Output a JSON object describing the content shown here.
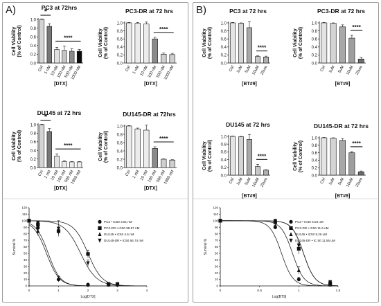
{
  "panels": [
    {
      "label": "A)",
      "axis_unit": "[DTX]",
      "curve_xlabel": "Log[DTX]"
    },
    {
      "label": "B)",
      "axis_unit": "[BT#9]",
      "curve_xlabel": "Log[BT9]"
    }
  ],
  "chart_data": [
    {
      "type": "bar",
      "id": "A1",
      "title": "PC3 at 72hrs",
      "ylabel": "Cell Viability\n(% of Control)",
      "xlabel": "[DTX]",
      "ylim": [
        0,
        1.0
      ],
      "yticks": [
        0,
        0.2,
        0.4,
        0.6,
        0.8,
        1.0
      ],
      "categories": [
        "Ctrl",
        "1 nM",
        "10 nM",
        "100 nM",
        "500 nM",
        "1000 nM"
      ],
      "values": [
        1.0,
        0.84,
        0.31,
        0.29,
        0.27,
        0.27
      ],
      "errors": [
        0.01,
        0.06,
        0.05,
        0.1,
        0.06,
        0.04
      ],
      "colors": [
        "#d4d4d4",
        "#777777",
        "#e2e2e2",
        "#c4c4c4",
        "#8a8a8a",
        "#0b0b0b"
      ],
      "annotations": [
        {
          "text": "*",
          "from": 0,
          "to": 1
        },
        {
          "text": "****",
          "from": 2,
          "to": 5
        }
      ]
    },
    {
      "type": "bar",
      "id": "A2",
      "title": "PC3-DR at 72 hrs",
      "ylabel": "Cell Viability\n(% of Control)",
      "xlabel": "[DTX]",
      "ylim": [
        0,
        1.0
      ],
      "yticks": [
        0,
        0.2,
        0.4,
        0.6,
        0.8,
        1.0
      ],
      "categories": [
        "Ctrl",
        "1 nM",
        "10 nM",
        "100 nM",
        "500 nM",
        "1000 nM"
      ],
      "values": [
        1.0,
        0.99,
        0.97,
        0.6,
        0.22,
        0.21
      ],
      "errors": [
        0.01,
        0.02,
        0.05,
        0.04,
        0.03,
        0.03
      ],
      "colors": [
        "#ececec",
        "#ececec",
        "#ececec",
        "#8a8a8a",
        "#cfcfcf",
        "#cfcfcf"
      ],
      "annotations": [
        {
          "text": "****",
          "from": 3,
          "to": 5
        }
      ]
    },
    {
      "type": "bar",
      "id": "A3",
      "title": "DU145 at 72 hrs",
      "ylabel": "Cell Viability\n(% of Control)",
      "xlabel": "[DTX]",
      "ylim": [
        0,
        1.0
      ],
      "yticks": [
        0,
        0.2,
        0.4,
        0.6,
        0.8,
        1.0
      ],
      "categories": [
        "Ctrl",
        "1 nM",
        "10 nM",
        "100 nM",
        "500 nM",
        "1000 nM"
      ],
      "values": [
        1.0,
        0.84,
        0.27,
        0.14,
        0.13,
        0.13
      ],
      "errors": [
        0.01,
        0.07,
        0.05,
        0.02,
        0.01,
        0.01
      ],
      "colors": [
        "#d4d4d4",
        "#777777",
        "#e2e2e2",
        "#ececec",
        "#ececec",
        "#ececec"
      ],
      "annotations": [
        {
          "text": "*",
          "from": 0,
          "to": 1
        },
        {
          "text": "****",
          "from": 2,
          "to": 5
        }
      ]
    },
    {
      "type": "bar",
      "id": "A4",
      "title": "DU145-DR at 72hrs",
      "ylabel": "Cell Viability\n(% of Control)",
      "xlabel": "[DTX]",
      "ylim": [
        0,
        1.0
      ],
      "yticks": [
        0,
        0.2,
        0.4,
        0.6,
        0.8,
        1.0
      ],
      "categories": [
        "Ctrl",
        "1 nM",
        "10 nM",
        "100 nM",
        "500 nM",
        "1000 nM"
      ],
      "values": [
        1.0,
        0.93,
        0.9,
        0.46,
        0.2,
        0.18
      ],
      "errors": [
        0.01,
        0.02,
        0.12,
        0.04,
        0.01,
        0.01
      ],
      "colors": [
        "#ececec",
        "#ececec",
        "#ececec",
        "#8a8a8a",
        "#cfcfcf",
        "#cfcfcf"
      ],
      "annotations": [
        {
          "text": "****",
          "from": 3,
          "to": 5
        }
      ]
    },
    {
      "type": "bar",
      "id": "B1",
      "title": "PC3 at 72 hrs",
      "ylabel": "Cell Viability\n(% of Control)",
      "xlabel": "[BT#9]",
      "ylim": [
        0,
        1.0
      ],
      "yticks": [
        0,
        0.2,
        0.4,
        0.6,
        0.8,
        1.0
      ],
      "categories": [
        "Ctrl",
        "1uM",
        "5uM",
        "10uM",
        "25um"
      ],
      "values": [
        1.0,
        0.99,
        0.88,
        0.16,
        0.15
      ],
      "errors": [
        0.01,
        0.01,
        0.15,
        0.02,
        0.02
      ],
      "colors": [
        "#e4e4e4",
        "#d4d4d4",
        "#a8a8a8",
        "#c8c8c8",
        "#b0b0b0"
      ],
      "annotations": [
        {
          "text": "****",
          "from": 3,
          "to": 4
        }
      ]
    },
    {
      "type": "bar",
      "id": "B2",
      "title": "PC3-DR at 72 hrs",
      "ylabel": "Cell Viability\n(% of Control)",
      "xlabel": "[BT#9]",
      "ylim": [
        0,
        1.0
      ],
      "yticks": [
        0,
        0.2,
        0.4,
        0.6,
        0.8,
        1.0
      ],
      "categories": [
        "Ctrl",
        "1uM",
        "5uM",
        "10uM",
        "25um"
      ],
      "values": [
        1.0,
        0.99,
        0.9,
        0.62,
        0.1
      ],
      "errors": [
        0.01,
        0.01,
        0.05,
        0.07,
        0.04
      ],
      "colors": [
        "#e4e4e4",
        "#d4d4d4",
        "#a8a8a8",
        "#9e9e9e",
        "#6e6e6e"
      ],
      "annotations": [
        {
          "text": "****",
          "from": 3,
          "to": 4
        }
      ]
    },
    {
      "type": "bar",
      "id": "B3",
      "title": "DU145 at 72 hrs",
      "ylabel": "Cell Viability\n(% of Control)",
      "xlabel": "[BT#9]",
      "ylim": [
        0,
        1.0
      ],
      "yticks": [
        0,
        0.2,
        0.4,
        0.6,
        0.8,
        1.0
      ],
      "categories": [
        "Ctrl",
        "1uM",
        "5uM",
        "10uM",
        "25um"
      ],
      "values": [
        1.0,
        0.99,
        0.92,
        0.22,
        0.13
      ],
      "errors": [
        0.01,
        0.01,
        0.13,
        0.06,
        0.01
      ],
      "colors": [
        "#e4e4e4",
        "#d4d4d4",
        "#a8a8a8",
        "#c8c8c8",
        "#b0b0b0"
      ],
      "annotations": [
        {
          "text": "****",
          "from": 3,
          "to": 4
        }
      ]
    },
    {
      "type": "bar",
      "id": "B4",
      "title": "DU145-DR at 72 hrs",
      "ylabel": "Cell Viability\n(% of Control)",
      "xlabel": "[BT#9]",
      "ylim": [
        0,
        1.0
      ],
      "yticks": [
        0,
        0.2,
        0.4,
        0.6,
        0.8,
        1.0
      ],
      "categories": [
        "Ctrl",
        "1uM",
        "5uM",
        "10uM",
        "25um"
      ],
      "values": [
        1.0,
        0.99,
        0.93,
        0.6,
        0.09
      ],
      "errors": [
        0.01,
        0.01,
        0.05,
        0.03,
        0.02
      ],
      "colors": [
        "#e4e4e4",
        "#d4d4d4",
        "#a8a8a8",
        "#9e9e9e",
        "#6e6e6e"
      ],
      "annotations": [
        {
          "text": "****",
          "from": 3,
          "to": 4
        }
      ]
    },
    {
      "type": "line",
      "id": "A5",
      "xlabel": "Log[DTX]",
      "ylabel": "Survival %",
      "xlim": [
        0,
        4
      ],
      "ylim": [
        0,
        120
      ],
      "xticks": [
        0,
        1,
        2,
        3,
        4
      ],
      "yticks": [
        0,
        10,
        20,
        30,
        40,
        50,
        60,
        70,
        80,
        90,
        100,
        110,
        120
      ],
      "series": [
        {
          "name": "PC3 • IC50 3.91 nM",
          "marker": "circle",
          "logIC50": 0.59,
          "hill": -2.0,
          "points": [
            [
              0,
              100
            ],
            [
              0.3,
              89
            ],
            [
              1,
              10
            ],
            [
              2,
              2
            ],
            [
              2.7,
              2
            ],
            [
              3,
              2
            ]
          ],
          "err": [
            2,
            7,
            4,
            1,
            1,
            1
          ]
        },
        {
          "name": "PC3-DR • IC50 98.97 nM",
          "marker": "square",
          "logIC50": 2.0,
          "hill": -1.8,
          "points": [
            [
              0,
              100
            ],
            [
              0.3,
              94
            ],
            [
              1,
              84
            ],
            [
              2,
              49
            ],
            [
              2.7,
              3
            ],
            [
              3,
              3
            ]
          ],
          "err": [
            2,
            3,
            5,
            6,
            1,
            1
          ]
        },
        {
          "name": "DU145 • IC50 4.5 nM",
          "marker": "triangle",
          "logIC50": 0.65,
          "hill": -2.1,
          "points": [
            [
              0,
              100
            ],
            [
              0.3,
              84
            ],
            [
              1,
              11
            ],
            [
              2,
              2
            ],
            [
              2.7,
              2
            ],
            [
              3,
              2
            ]
          ],
          "err": [
            2,
            7,
            4,
            1,
            1,
            1
          ]
        },
        {
          "name": "DU145-DR • IC50 56.74 nM",
          "marker": "triangle-down",
          "logIC50": 1.75,
          "hill": -1.6,
          "points": [
            [
              0,
              100
            ],
            [
              0.3,
              96
            ],
            [
              1,
              88
            ],
            [
              2,
              35
            ],
            [
              2.7,
              2
            ],
            [
              3,
              2
            ]
          ],
          "err": [
            2,
            3,
            12,
            5,
            1,
            1
          ]
        }
      ]
    },
    {
      "type": "line",
      "id": "B5",
      "xlabel": "Log[BT9]",
      "ylabel": "Survival %",
      "xlim": [
        0,
        1.5
      ],
      "ylim": [
        0,
        120
      ],
      "xticks": [
        0,
        0.5,
        1,
        1.5
      ],
      "yticks": [
        0,
        10,
        20,
        30,
        40,
        50,
        60,
        70,
        80,
        90,
        100,
        110,
        120
      ],
      "series": [
        {
          "name": "PC3 • IC50 6.03 uM",
          "marker": "circle",
          "logIC50": 0.78,
          "hill": -6.0,
          "points": [
            [
              0,
              100
            ],
            [
              0.7,
              90
            ],
            [
              1.0,
              10
            ],
            [
              1.4,
              2
            ]
          ],
          "err": [
            1,
            3,
            3,
            1
          ]
        },
        {
          "name": "PC3-DR • IC50 11.6 uM",
          "marker": "square",
          "logIC50": 1.06,
          "hill": -6.0,
          "points": [
            [
              0,
              100
            ],
            [
              0.7,
              98
            ],
            [
              1.0,
              57
            ],
            [
              1.4,
              4
            ]
          ],
          "err": [
            1,
            2,
            8,
            1
          ]
        },
        {
          "name": "DU145 • IC50 8.26 uM",
          "marker": "triangle",
          "logIC50": 0.92,
          "hill": -6.0,
          "points": [
            [
              0,
              100
            ],
            [
              0.7,
              92
            ],
            [
              1.0,
              24
            ],
            [
              1.4,
              2
            ]
          ],
          "err": [
            1,
            3,
            6,
            1
          ]
        },
        {
          "name": "DU145-DR • IC 50 11.55 uM",
          "marker": "triangle-down",
          "logIC50": 1.06,
          "hill": -6.0,
          "points": [
            [
              0,
              100
            ],
            [
              0.7,
              100
            ],
            [
              1.0,
              62
            ],
            [
              1.4,
              6
            ]
          ],
          "err": [
            1,
            1,
            5,
            1
          ]
        }
      ]
    }
  ]
}
